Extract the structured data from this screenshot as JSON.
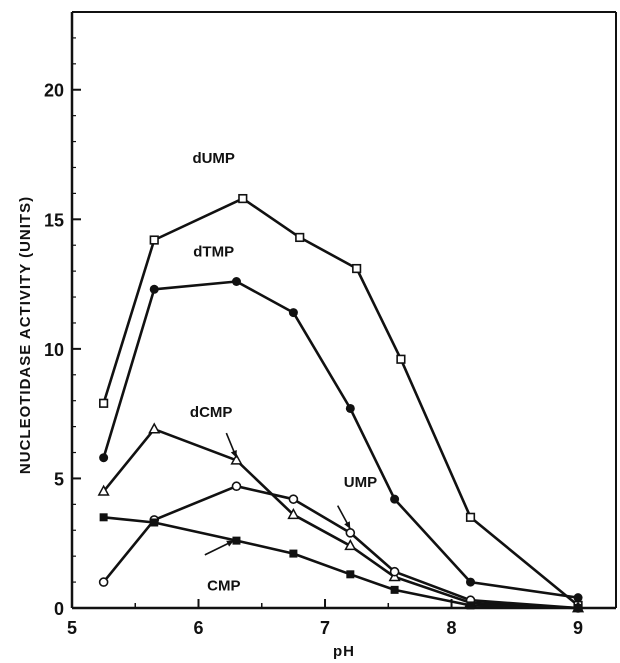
{
  "chart_data": {
    "type": "line",
    "title": "",
    "xlabel": "pH",
    "ylabel": "NUCLEOTIDASE ACTIVITY (UNITS)",
    "xlim": [
      5,
      9.3
    ],
    "ylim": [
      0,
      23
    ],
    "xticks": [
      5,
      6,
      7,
      8,
      9
    ],
    "yticks": [
      0,
      5,
      10,
      15,
      20
    ],
    "grid": false,
    "legend": "none (series labelled directly on the plot)",
    "colors": {
      "line": "#111111",
      "axes": "#111111",
      "background": "#ffffff"
    },
    "series": [
      {
        "name": "dUMP",
        "marker": "open-square",
        "points": [
          [
            5.25,
            7.9
          ],
          [
            5.65,
            14.2
          ],
          [
            6.35,
            15.8
          ],
          [
            6.8,
            14.3
          ],
          [
            7.25,
            13.1
          ],
          [
            7.6,
            9.6
          ],
          [
            8.15,
            3.5
          ],
          [
            9.0,
            0.1
          ]
        ]
      },
      {
        "name": "dTMP",
        "marker": "filled-circle",
        "points": [
          [
            5.25,
            5.8
          ],
          [
            5.65,
            12.3
          ],
          [
            6.3,
            12.6
          ],
          [
            6.75,
            11.4
          ],
          [
            7.2,
            7.7
          ],
          [
            7.55,
            4.2
          ],
          [
            8.15,
            1.0
          ],
          [
            9.0,
            0.4
          ]
        ]
      },
      {
        "name": "dCMP",
        "marker": "open-triangle",
        "points": [
          [
            5.25,
            4.5
          ],
          [
            5.65,
            6.9
          ],
          [
            6.3,
            5.7
          ],
          [
            6.75,
            3.6
          ],
          [
            7.2,
            2.4
          ],
          [
            7.55,
            1.2
          ],
          [
            8.15,
            0.2
          ],
          [
            9.0,
            0.0
          ]
        ]
      },
      {
        "name": "UMP",
        "marker": "open-circle",
        "points": [
          [
            5.25,
            1.0
          ],
          [
            5.65,
            3.4
          ],
          [
            6.3,
            4.7
          ],
          [
            6.75,
            4.2
          ],
          [
            7.2,
            2.9
          ],
          [
            7.55,
            1.4
          ],
          [
            8.15,
            0.3
          ],
          [
            9.0,
            0.0
          ]
        ]
      },
      {
        "name": "CMP",
        "marker": "filled-square",
        "points": [
          [
            5.25,
            3.5
          ],
          [
            5.65,
            3.3
          ],
          [
            6.3,
            2.6
          ],
          [
            6.75,
            2.1
          ],
          [
            7.2,
            1.3
          ],
          [
            7.55,
            0.7
          ],
          [
            8.15,
            0.1
          ],
          [
            9.0,
            0.0
          ]
        ]
      }
    ],
    "annotations": [
      {
        "text": "dUMP",
        "series": "dUMP",
        "pointer": false
      },
      {
        "text": "dTMP",
        "series": "dTMP",
        "pointer": false
      },
      {
        "text": "dCMP",
        "series": "dCMP",
        "pointer": true
      },
      {
        "text": "UMP",
        "series": "UMP",
        "pointer": true
      },
      {
        "text": "CMP",
        "series": "CMP",
        "pointer": true
      }
    ]
  }
}
